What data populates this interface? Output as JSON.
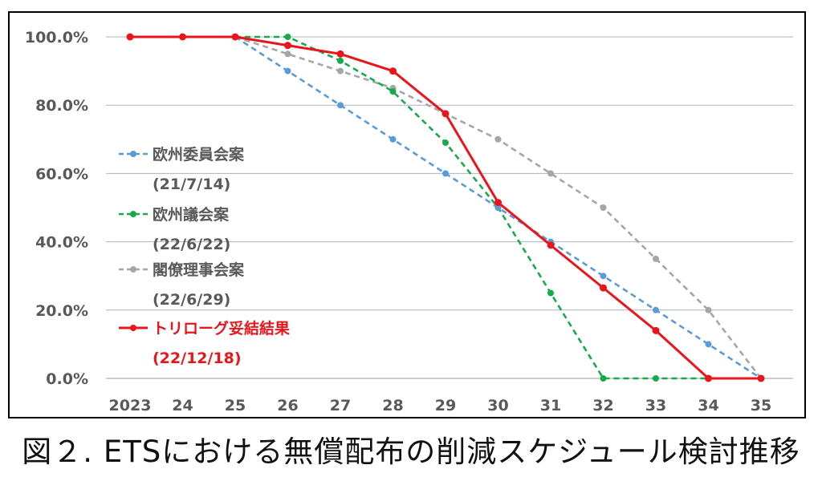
{
  "chart_data": {
    "type": "line",
    "categories": [
      "2023",
      "24",
      "25",
      "26",
      "27",
      "28",
      "29",
      "30",
      "31",
      "32",
      "33",
      "34",
      "35"
    ],
    "y_tick_labels": [
      "0.0%",
      "20.0%",
      "40.0%",
      "60.0%",
      "80.0%",
      "100.0%"
    ],
    "ylim": [
      0,
      100
    ],
    "grid": true,
    "legend_position": "left-inside",
    "series": [
      {
        "name": "欧州委員会案",
        "date": "(21/7/14)",
        "color": "#5b9bd5",
        "dash": true,
        "values": [
          null,
          null,
          100,
          90,
          80,
          70,
          60,
          50,
          40,
          30,
          20,
          10,
          0
        ]
      },
      {
        "name": "欧州議会案",
        "date": "(22/6/22)",
        "color": "#1aa84c",
        "dash": true,
        "values": [
          null,
          null,
          100,
          100,
          93,
          84,
          69,
          50,
          25,
          0,
          0,
          0,
          null
        ]
      },
      {
        "name": "閣僚理事会案",
        "date": "(22/6/29)",
        "color": "#a6a6a6",
        "dash": true,
        "values": [
          null,
          null,
          100,
          95,
          90,
          85,
          77.5,
          70,
          60,
          50,
          35,
          20,
          0
        ]
      },
      {
        "name": "トリローグ妥結結果",
        "date": "(22/12/18)",
        "color": "#e8151b",
        "dash": false,
        "values": [
          100,
          100,
          100,
          97.5,
          95,
          90,
          77.5,
          51.5,
          39,
          26.5,
          14,
          0,
          0
        ]
      }
    ]
  },
  "caption": "図２. ETSにおける無償配布の削減スケジュール検討推移"
}
